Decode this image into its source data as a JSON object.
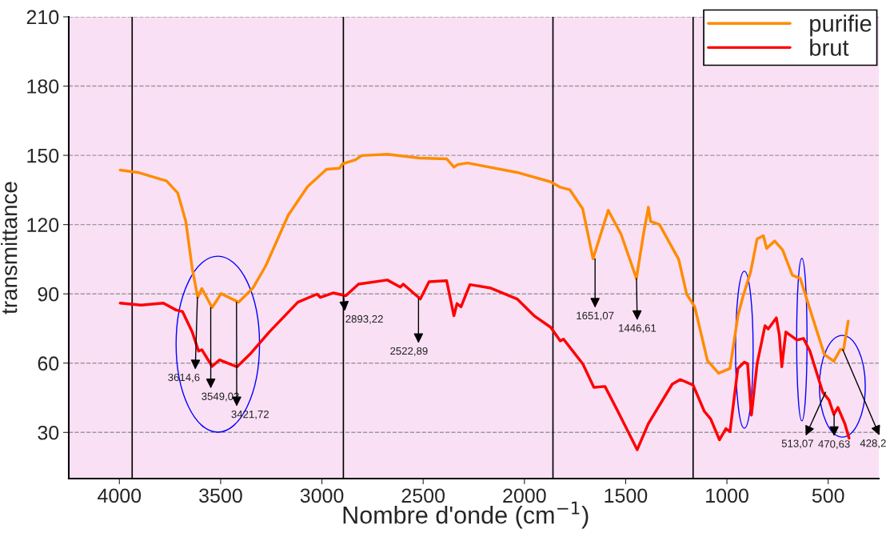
{
  "chart_data": {
    "type": "line",
    "xlabel": "Nombre d'onde (cm$^{−1}$)",
    "ylabel": "transmittance",
    "xlim": [
      4250,
      250
    ],
    "xticks": [
      4000,
      3500,
      3000,
      2500,
      2000,
      1500,
      1000,
      500
    ],
    "ylim": [
      10,
      210
    ],
    "yticks": [
      30,
      60,
      90,
      120,
      150,
      180,
      210
    ],
    "grid": "y",
    "legend": "top right",
    "series": [
      {
        "name": "purifie",
        "color": "#ff8c00",
        "x": [
          3996,
          3909,
          3767,
          3712,
          3672,
          3640,
          3613,
          3593,
          3542,
          3498,
          3411,
          3340,
          3277,
          3166,
          3071,
          2977,
          2913,
          2898,
          2834,
          2803,
          2677,
          2518,
          2384,
          2348,
          2329,
          2281,
          2036,
          1870,
          1823,
          1776,
          1712,
          1661,
          1586,
          1523,
          1447,
          1412,
          1388,
          1377,
          1333,
          1238,
          1199,
          1159,
          1096,
          1041,
          985,
          946,
          922,
          883,
          851,
          820,
          804,
          764,
          725,
          677,
          638,
          574,
          519,
          472,
          440,
          424,
          401
        ],
        "values": [
          143.6,
          142.6,
          138.9,
          133.7,
          121.4,
          100.8,
          88.5,
          92.3,
          84.1,
          90.1,
          86.4,
          92.6,
          102.2,
          124.1,
          136.4,
          144.0,
          144.4,
          146.3,
          148.1,
          149.9,
          150.5,
          148.8,
          148.5,
          144.9,
          146,
          146.7,
          142.6,
          138.5,
          136.2,
          135.1,
          126.8,
          105.2,
          126.2,
          115.9,
          96.7,
          115.9,
          127.5,
          121.4,
          120,
          104.9,
          89.9,
          84.4,
          61.1,
          55.6,
          57.7,
          80.3,
          88.5,
          99.5,
          113.8,
          115.2,
          109.7,
          112.9,
          109,
          98.1,
          96.7,
          78.9,
          63.8,
          60.8,
          65.9,
          65.9,
          78.2
        ]
      },
      {
        "name": "brut",
        "color": "#ff0000",
        "x": [
          3996,
          3893,
          3783,
          3720,
          3688,
          3640,
          3609,
          3593,
          3542,
          3506,
          3419,
          3356,
          3261,
          3119,
          3024,
          3008,
          2945,
          2882,
          2819,
          2677,
          2613,
          2598,
          2514,
          2471,
          2384,
          2348,
          2333,
          2313,
          2269,
          2170,
          2036,
          1949,
          1870,
          1823,
          1807,
          1712,
          1657,
          1602,
          1539,
          1443,
          1388,
          1270,
          1230,
          1167,
          1112,
          1080,
          1037,
          1005,
          985,
          946,
          914,
          898,
          879,
          851,
          812,
          796,
          756,
          741,
          729,
          709,
          654,
          622,
          590,
          527,
          496,
          472,
          452,
          417,
          397
        ],
        "values": [
          86,
          85.1,
          86,
          83,
          82.3,
          73.4,
          65.2,
          65.8,
          58.6,
          61.4,
          58.4,
          63.8,
          73.4,
          86.4,
          89.9,
          88.5,
          90.4,
          89.2,
          94.2,
          96,
          92.9,
          94.2,
          87.8,
          95.3,
          95.7,
          80.5,
          85.8,
          84.4,
          94,
          92.6,
          87.8,
          80.3,
          75.5,
          69.6,
          70.4,
          59.7,
          49.5,
          49.9,
          39.2,
          22.5,
          33.8,
          50.9,
          52.9,
          50.5,
          39.2,
          35.8,
          26.8,
          31.6,
          30.3,
          57.7,
          60.4,
          59.7,
          37.5,
          59.7,
          76.2,
          74.8,
          79.6,
          72.1,
          58.4,
          73.5,
          70,
          70.7,
          65.2,
          47.4,
          44,
          37.8,
          40.8,
          33.6,
          27.5
        ]
      }
    ],
    "ref_lines": [
      {
        "axis": "x",
        "value": 3937,
        "color": "#000000"
      },
      {
        "axis": "x",
        "value": 2894,
        "color": "#000000"
      },
      {
        "axis": "x",
        "value": 1859,
        "color": "#000000"
      },
      {
        "axis": "x",
        "value": 1167,
        "color": "#000000"
      }
    ],
    "annotations": [
      {
        "text": "3614,6",
        "x": 3614.6,
        "y": 88.5
      },
      {
        "text": "3549,02",
        "x": 3549.02,
        "y": 84.1
      },
      {
        "text": "3421,72",
        "x": 3421.72,
        "y": 86.4
      },
      {
        "text": "2893,22",
        "x": 2893.22,
        "y": 89.2
      },
      {
        "text": "2522,89",
        "x": 2522.89,
        "y": 87.8
      },
      {
        "text": "1651,07",
        "x": 1651.07,
        "y": 105.2
      },
      {
        "text": "1446,61",
        "x": 1446.61,
        "y": 96.7
      },
      {
        "text": "513,07",
        "x": 513.07,
        "y": 47.4
      },
      {
        "text": "470,63",
        "x": 470.63,
        "y": 37.8
      },
      {
        "text": "428,2",
        "x": 428.2,
        "y": 65.9
      }
    ]
  }
}
